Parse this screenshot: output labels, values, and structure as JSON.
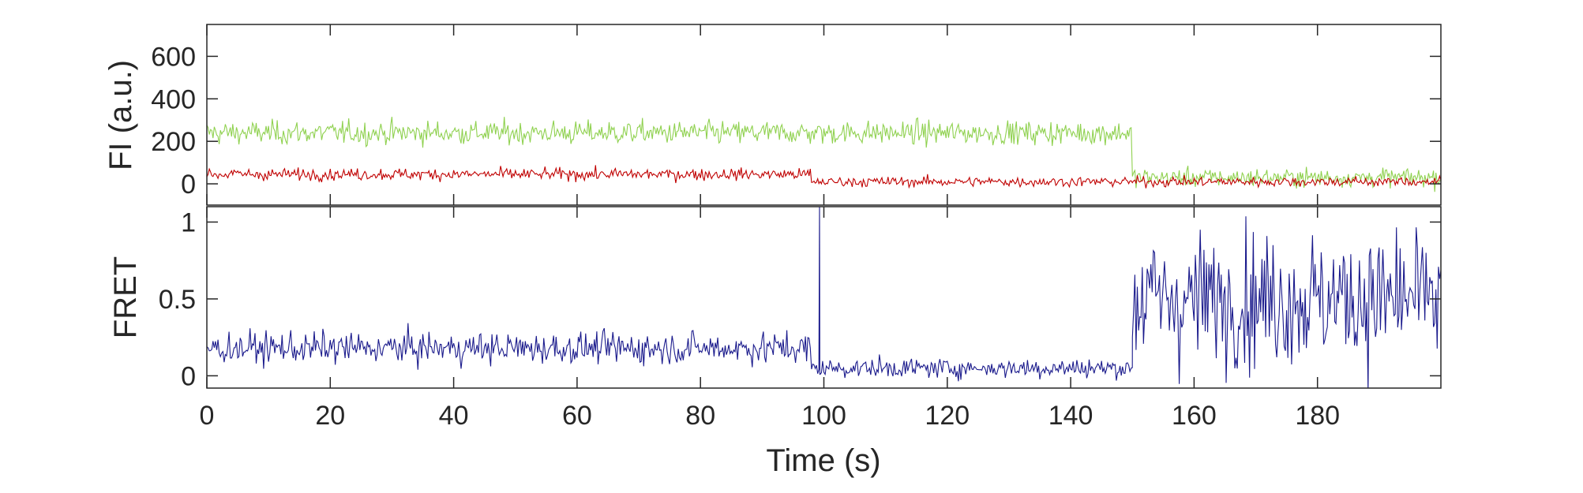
{
  "chart_data": [
    {
      "type": "line",
      "panel": "top",
      "xlabel": "",
      "ylabel": "FI (a.u.)",
      "xlim": [
        0,
        200
      ],
      "ylim": [
        -100,
        750
      ],
      "y_ticks": [
        0,
        200,
        400,
        600
      ],
      "y_tick_labels": [
        "0",
        "200",
        "400",
        "600"
      ],
      "x_tick_labels_shown": false,
      "grid": false,
      "legend": "none",
      "series": [
        {
          "color": "#8fd14f",
          "x_step": 0.2,
          "segments": [
            {
              "x": [
                0,
                150
              ],
              "mean": 240,
              "noise": 70
            },
            {
              "x": [
                150,
                200
              ],
              "mean": 30,
              "noise": 55
            }
          ]
        },
        {
          "color": "#c00000",
          "x_step": 0.2,
          "segments": [
            {
              "x": [
                0,
                98
              ],
              "mean": 45,
              "noise": 35
            },
            {
              "x": [
                98,
                200
              ],
              "mean": 10,
              "noise": 30
            }
          ]
        }
      ]
    },
    {
      "type": "line",
      "panel": "bottom",
      "xlabel": "Time (s)",
      "ylabel": "FRET",
      "xlim": [
        0,
        200
      ],
      "ylim": [
        -0.08,
        1.1
      ],
      "y_ticks": [
        0,
        0.5,
        1
      ],
      "y_tick_labels": [
        "0",
        "0.5",
        "1"
      ],
      "x_ticks": [
        0,
        20,
        40,
        60,
        80,
        100,
        120,
        140,
        160,
        180
      ],
      "x_tick_labels": [
        "0",
        "20",
        "40",
        "60",
        "80",
        "100",
        "120",
        "140",
        "160",
        "180"
      ],
      "grid": false,
      "legend": "none",
      "series": [
        {
          "color": "#1a1a8c",
          "x_step": 0.2,
          "segments": [
            {
              "x": [
                0,
                98
              ],
              "mean": 0.18,
              "noise": 0.13
            },
            {
              "x": [
                98,
                150
              ],
              "mean": 0.05,
              "noise": 0.08
            },
            {
              "x": [
                150,
                200
              ],
              "mean": 0.5,
              "noise": 0.55
            }
          ],
          "spikes": [
            {
              "x": 99.3,
              "y": 1.1
            }
          ]
        }
      ]
    }
  ]
}
